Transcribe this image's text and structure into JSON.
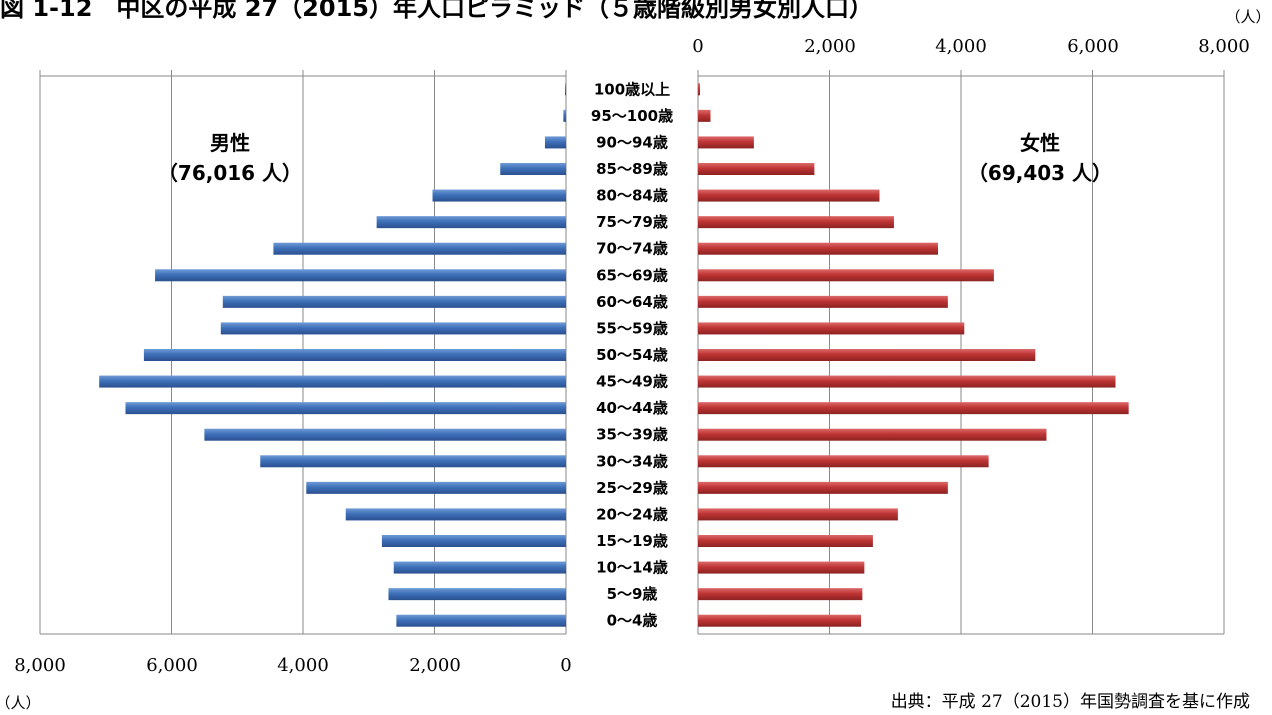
{
  "title": "図 1-12　中区の平成 27（2015）年人口ピラミッド（５歳階級別男女別人口）",
  "source_note": "出典：平成 27（2015）年国勢調査を基に作成",
  "colors": {
    "male": "#3e70b8",
    "female": "#be3434",
    "axis": "#888888",
    "grid": "#8a8a8a"
  },
  "chart_data": {
    "type": "bar",
    "orientation": "horizontal-pyramid",
    "categories": [
      "0〜4歳",
      "5〜9歳",
      "10〜14歳",
      "15〜19歳",
      "20〜24歳",
      "25〜29歳",
      "30〜34歳",
      "35〜39歳",
      "40〜44歳",
      "45〜49歳",
      "50〜54歳",
      "55〜59歳",
      "60〜64歳",
      "65〜69歳",
      "70〜74歳",
      "75〜79歳",
      "80〜84歳",
      "85〜89歳",
      "90〜94歳",
      "95〜100歳",
      "100歳以上"
    ],
    "series": [
      {
        "name": "男性",
        "values": [
          2580,
          2700,
          2620,
          2800,
          3350,
          3950,
          4650,
          5500,
          6700,
          7100,
          6420,
          5250,
          5220,
          6250,
          4450,
          2880,
          2030,
          1000,
          320,
          40,
          5
        ]
      },
      {
        "name": "女性",
        "values": [
          2480,
          2500,
          2530,
          2660,
          3040,
          3800,
          4420,
          5300,
          6550,
          6350,
          5130,
          4050,
          3800,
          4500,
          3650,
          2980,
          2760,
          1770,
          850,
          190,
          30
        ]
      }
    ],
    "annotations": [
      {
        "series": "男性",
        "label": "男性",
        "total": "（76,016 人）"
      },
      {
        "series": "女性",
        "label": "女性",
        "total": "（69,403 人）"
      }
    ],
    "left_axis": {
      "ticks": [
        "8,000",
        "6,000",
        "4,000",
        "2,000",
        "0"
      ],
      "range": [
        8000,
        0
      ],
      "unit": "（人）"
    },
    "right_axis": {
      "ticks": [
        "0",
        "2,000",
        "4,000",
        "6,000",
        "8,000"
      ],
      "range": [
        0,
        8000
      ],
      "unit": "（人）"
    },
    "grid": true,
    "legend": "none"
  }
}
